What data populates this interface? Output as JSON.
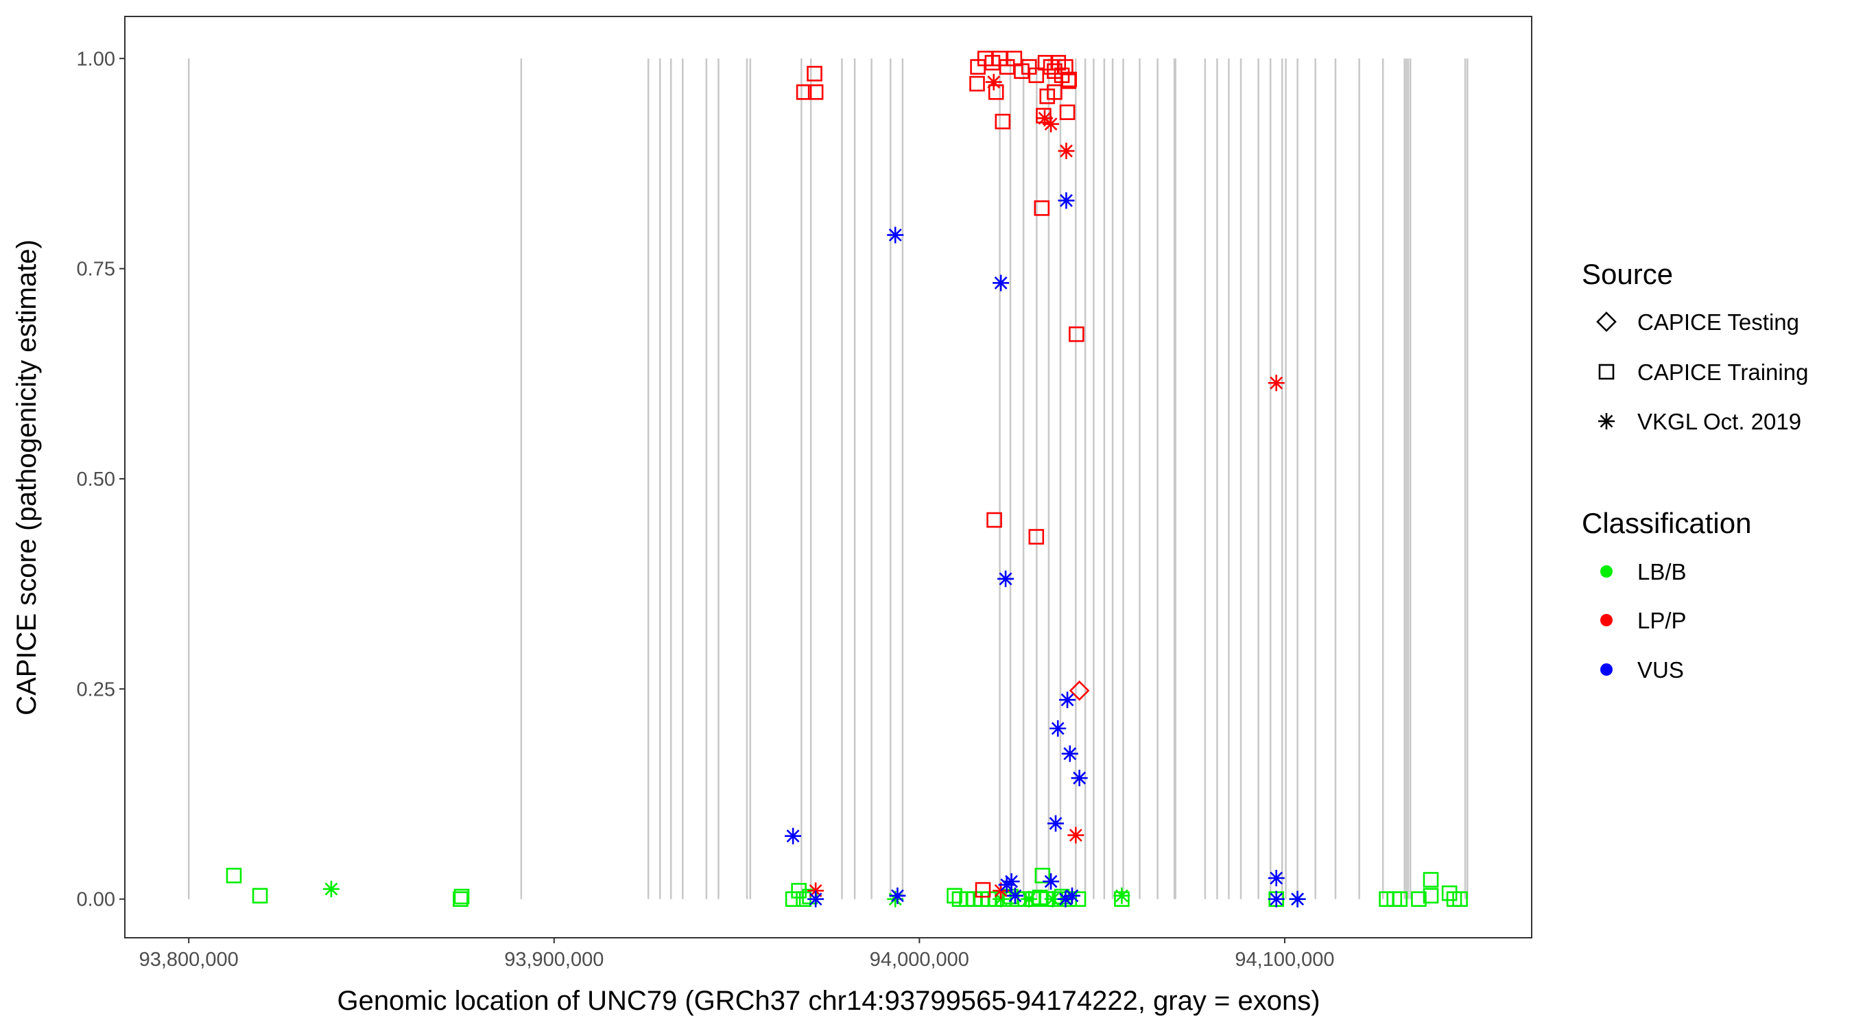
{
  "chart_data": {
    "type": "scatter",
    "xlabel": "Genomic location of UNC79 (GRCh37 chr14:93799565-94174222, gray = exons)",
    "ylabel": "CAPICE score (pathogenicity estimate)",
    "xlim": [
      93782500,
      94167600
    ],
    "ylim": [
      -0.046,
      1.05
    ],
    "xticks": [
      93800000,
      93900000,
      94000000,
      94100000
    ],
    "xtick_labels": [
      "93,800,000",
      "93,900,000",
      "94,000,000",
      "94,100,000"
    ],
    "yticks": [
      0,
      0.25,
      0.5,
      0.75,
      1.0
    ],
    "ytick_labels": [
      "0.00",
      "0.25",
      "0.50",
      "0.75",
      "1.00"
    ],
    "grid": false,
    "legend_placement": "right",
    "legend": {
      "source_title": "Source",
      "sources": [
        {
          "label": "CAPICE Testing",
          "shape": "diamond"
        },
        {
          "label": "CAPICE Training",
          "shape": "square"
        },
        {
          "label": "VKGL Oct. 2019",
          "shape": "asterisk"
        }
      ],
      "class_title": "Classification",
      "classes": [
        {
          "label": "LB/B",
          "color": "#00ee00"
        },
        {
          "label": "LP/P",
          "color": "#ff0000"
        },
        {
          "label": "VUS",
          "color": "#0000ff"
        }
      ]
    },
    "exons": [
      93800000,
      93891000,
      93925800,
      93929000,
      93932000,
      93935200,
      93941700,
      93945000,
      93952800,
      93953700,
      93967700,
      93970300,
      93978800,
      93982300,
      93986900,
      93992100,
      93995400,
      94022000,
      94024900,
      94028500,
      94032100,
      94035400,
      94038600,
      94042800,
      94045400,
      94047700,
      94050600,
      94052900,
      94055800,
      94060300,
      94065200,
      94069800,
      94070100,
      94078200,
      94081500,
      94084700,
      94088000,
      94092800,
      94096100,
      94099300,
      94100300,
      94103500,
      94108400,
      94113900,
      94120400,
      94126900,
      94132800,
      94133300,
      94133800,
      94134400,
      94149400,
      94150000
    ],
    "points": [
      [
        93812350,
        0.028,
        "LB/B",
        "CAPICE Training"
      ],
      [
        93819500,
        0.004,
        "LB/B",
        "CAPICE Training"
      ],
      [
        93874400,
        0.0,
        "LB/B",
        "CAPICE Training"
      ],
      [
        93874700,
        0.003,
        "LB/B",
        "CAPICE Training"
      ],
      [
        93839000,
        0.012,
        "LB/B",
        "VKGL Oct. 2019"
      ],
      [
        93965400,
        0.0,
        "LB/B",
        "CAPICE Training"
      ],
      [
        93967000,
        0.01,
        "LB/B",
        "CAPICE Training"
      ],
      [
        93968300,
        0.0,
        "LB/B",
        "CAPICE Training"
      ],
      [
        93970000,
        0.003,
        "LB/B",
        "CAPICE Training"
      ],
      [
        93993400,
        0.0,
        "LB/B",
        "VKGL Oct. 2019"
      ],
      [
        94009600,
        0.004,
        "LB/B",
        "CAPICE Training"
      ],
      [
        94011000,
        0.0,
        "LB/B",
        "CAPICE Training"
      ],
      [
        94013000,
        0.0,
        "LB/B",
        "CAPICE Training"
      ],
      [
        94015000,
        0.0,
        "LB/B",
        "CAPICE Training"
      ],
      [
        94017000,
        0.0,
        "LB/B",
        "CAPICE Training"
      ],
      [
        94019000,
        0.0,
        "LB/B",
        "CAPICE Training"
      ],
      [
        94021000,
        0.0,
        "LB/B",
        "CAPICE Training"
      ],
      [
        94023000,
        0.0,
        "LB/B",
        "CAPICE Training"
      ],
      [
        94025000,
        0.003,
        "LB/B",
        "CAPICE Training"
      ],
      [
        94027000,
        0.0,
        "LB/B",
        "CAPICE Training"
      ],
      [
        94029000,
        0.0,
        "LB/B",
        "CAPICE Training"
      ],
      [
        94031000,
        0.0,
        "LB/B",
        "CAPICE Training"
      ],
      [
        94033000,
        0.002,
        "LB/B",
        "CAPICE Training"
      ],
      [
        94035000,
        0.0,
        "LB/B",
        "CAPICE Training"
      ],
      [
        94037000,
        0.0,
        "LB/B",
        "CAPICE Training"
      ],
      [
        94039000,
        0.003,
        "LB/B",
        "CAPICE Training"
      ],
      [
        94041000,
        0.0,
        "LB/B",
        "CAPICE Training"
      ],
      [
        94043500,
        0.0,
        "LB/B",
        "CAPICE Training"
      ],
      [
        94033700,
        0.028,
        "LB/B",
        "CAPICE Training"
      ],
      [
        94022300,
        0.0,
        "LB/B",
        "VKGL Oct. 2019"
      ],
      [
        94030000,
        0.0,
        "LB/B",
        "VKGL Oct. 2019"
      ],
      [
        94036500,
        0.0,
        "LB/B",
        "VKGL Oct. 2019"
      ],
      [
        94055400,
        0.0,
        "LB/B",
        "CAPICE Training"
      ],
      [
        94055400,
        0.004,
        "LB/B",
        "VKGL Oct. 2019"
      ],
      [
        94097700,
        0.0,
        "LB/B",
        "CAPICE Training"
      ],
      [
        94103500,
        0.0,
        "LB/B",
        "VKGL Oct. 2019"
      ],
      [
        94127900,
        0.0,
        "LB/B",
        "CAPICE Training"
      ],
      [
        94130000,
        0.0,
        "LB/B",
        "CAPICE Training"
      ],
      [
        94131500,
        0.0,
        "LB/B",
        "CAPICE Training"
      ],
      [
        94136700,
        0.0,
        "LB/B",
        "CAPICE Training"
      ],
      [
        94140000,
        0.023,
        "LB/B",
        "CAPICE Training"
      ],
      [
        94140000,
        0.004,
        "LB/B",
        "CAPICE Training"
      ],
      [
        94145100,
        0.007,
        "LB/B",
        "CAPICE Training"
      ],
      [
        94146400,
        0.0,
        "LB/B",
        "CAPICE Training"
      ],
      [
        94148000,
        0.0,
        "LB/B",
        "CAPICE Training"
      ],
      [
        93968400,
        0.96,
        "LP/P",
        "CAPICE Training"
      ],
      [
        93971300,
        0.982,
        "LP/P",
        "CAPICE Training"
      ],
      [
        93971600,
        0.96,
        "LP/P",
        "CAPICE Training"
      ],
      [
        94015800,
        0.97,
        "LP/P",
        "CAPICE Training"
      ],
      [
        94016000,
        0.99,
        "LP/P",
        "CAPICE Training"
      ],
      [
        94018000,
        1.0,
        "LP/P",
        "CAPICE Training"
      ],
      [
        94020000,
        0.995,
        "LP/P",
        "CAPICE Training"
      ],
      [
        94022000,
        1.0,
        "LP/P",
        "CAPICE Training"
      ],
      [
        94024000,
        0.99,
        "LP/P",
        "CAPICE Training"
      ],
      [
        94026000,
        1.0,
        "LP/P",
        "CAPICE Training"
      ],
      [
        94028000,
        0.985,
        "LP/P",
        "CAPICE Training"
      ],
      [
        94030000,
        0.99,
        "LP/P",
        "CAPICE Training"
      ],
      [
        94032000,
        0.98,
        "LP/P",
        "CAPICE Training"
      ],
      [
        94034500,
        0.995,
        "LP/P",
        "CAPICE Training"
      ],
      [
        94036000,
        0.99,
        "LP/P",
        "CAPICE Training"
      ],
      [
        94037000,
        0.985,
        "LP/P",
        "CAPICE Training"
      ],
      [
        94038000,
        0.995,
        "LP/P",
        "CAPICE Training"
      ],
      [
        94039000,
        0.98,
        "LP/P",
        "CAPICE Training"
      ],
      [
        94040000,
        0.99,
        "LP/P",
        "CAPICE Training"
      ],
      [
        94041000,
        0.975,
        "LP/P",
        "CAPICE Training"
      ],
      [
        94040800,
        0.973,
        "LP/P",
        "CAPICE Training"
      ],
      [
        94021000,
        0.96,
        "LP/P",
        "CAPICE Training"
      ],
      [
        94022800,
        0.925,
        "LP/P",
        "CAPICE Training"
      ],
      [
        94035000,
        0.955,
        "LP/P",
        "CAPICE Training"
      ],
      [
        94034000,
        0.932,
        "LP/P",
        "CAPICE Training"
      ],
      [
        94037000,
        0.96,
        "LP/P",
        "CAPICE Training"
      ],
      [
        94040500,
        0.936,
        "LP/P",
        "CAPICE Training"
      ],
      [
        94033500,
        0.822,
        "LP/P",
        "CAPICE Training"
      ],
      [
        94043000,
        0.672,
        "LP/P",
        "CAPICE Training"
      ],
      [
        94020500,
        0.451,
        "LP/P",
        "CAPICE Training"
      ],
      [
        94032000,
        0.431,
        "LP/P",
        "CAPICE Training"
      ],
      [
        94017400,
        0.011,
        "LP/P",
        "CAPICE Training"
      ],
      [
        94020350,
        0.972,
        "LP/P",
        "VKGL Oct. 2019"
      ],
      [
        94034300,
        0.929,
        "LP/P",
        "VKGL Oct. 2019"
      ],
      [
        94036000,
        0.922,
        "LP/P",
        "VKGL Oct. 2019"
      ],
      [
        94040200,
        0.89,
        "LP/P",
        "VKGL Oct. 2019"
      ],
      [
        94097700,
        0.614,
        "LP/P",
        "VKGL Oct. 2019"
      ],
      [
        94042800,
        0.076,
        "LP/P",
        "VKGL Oct. 2019"
      ],
      [
        93971600,
        0.01,
        "LP/P",
        "VKGL Oct. 2019"
      ],
      [
        94022300,
        0.01,
        "LP/P",
        "VKGL Oct. 2019"
      ],
      [
        94043800,
        0.248,
        "LP/P",
        "CAPICE Testing"
      ],
      [
        93993400,
        0.79,
        "VUS",
        "VKGL Oct. 2019"
      ],
      [
        94022300,
        0.733,
        "VUS",
        "VKGL Oct. 2019"
      ],
      [
        94023600,
        0.381,
        "VUS",
        "VKGL Oct. 2019"
      ],
      [
        94040200,
        0.831,
        "VUS",
        "VKGL Oct. 2019"
      ],
      [
        94040500,
        0.237,
        "VUS",
        "VKGL Oct. 2019"
      ],
      [
        94037900,
        0.203,
        "VUS",
        "VKGL Oct. 2019"
      ],
      [
        94041200,
        0.173,
        "VUS",
        "VKGL Oct. 2019"
      ],
      [
        94043800,
        0.144,
        "VUS",
        "VKGL Oct. 2019"
      ],
      [
        94037300,
        0.09,
        "VUS",
        "VKGL Oct. 2019"
      ],
      [
        93965400,
        0.075,
        "VUS",
        "VKGL Oct. 2019"
      ],
      [
        94097700,
        0.025,
        "VUS",
        "VKGL Oct. 2019"
      ],
      [
        94036000,
        0.021,
        "VUS",
        "VKGL Oct. 2019"
      ],
      [
        94025200,
        0.021,
        "VUS",
        "VKGL Oct. 2019"
      ],
      [
        94023900,
        0.017,
        "VUS",
        "VKGL Oct. 2019"
      ],
      [
        93971600,
        0.0,
        "VUS",
        "VKGL Oct. 2019"
      ],
      [
        93994000,
        0.004,
        "VUS",
        "VKGL Oct. 2019"
      ],
      [
        94026200,
        0.004,
        "VUS",
        "VKGL Oct. 2019"
      ],
      [
        94040000,
        0.0,
        "VUS",
        "VKGL Oct. 2019"
      ],
      [
        94041800,
        0.004,
        "VUS",
        "VKGL Oct. 2019"
      ],
      [
        94097700,
        0.0,
        "VUS",
        "VKGL Oct. 2019"
      ],
      [
        94103500,
        0.0,
        "VUS",
        "VKGL Oct. 2019"
      ]
    ]
  }
}
